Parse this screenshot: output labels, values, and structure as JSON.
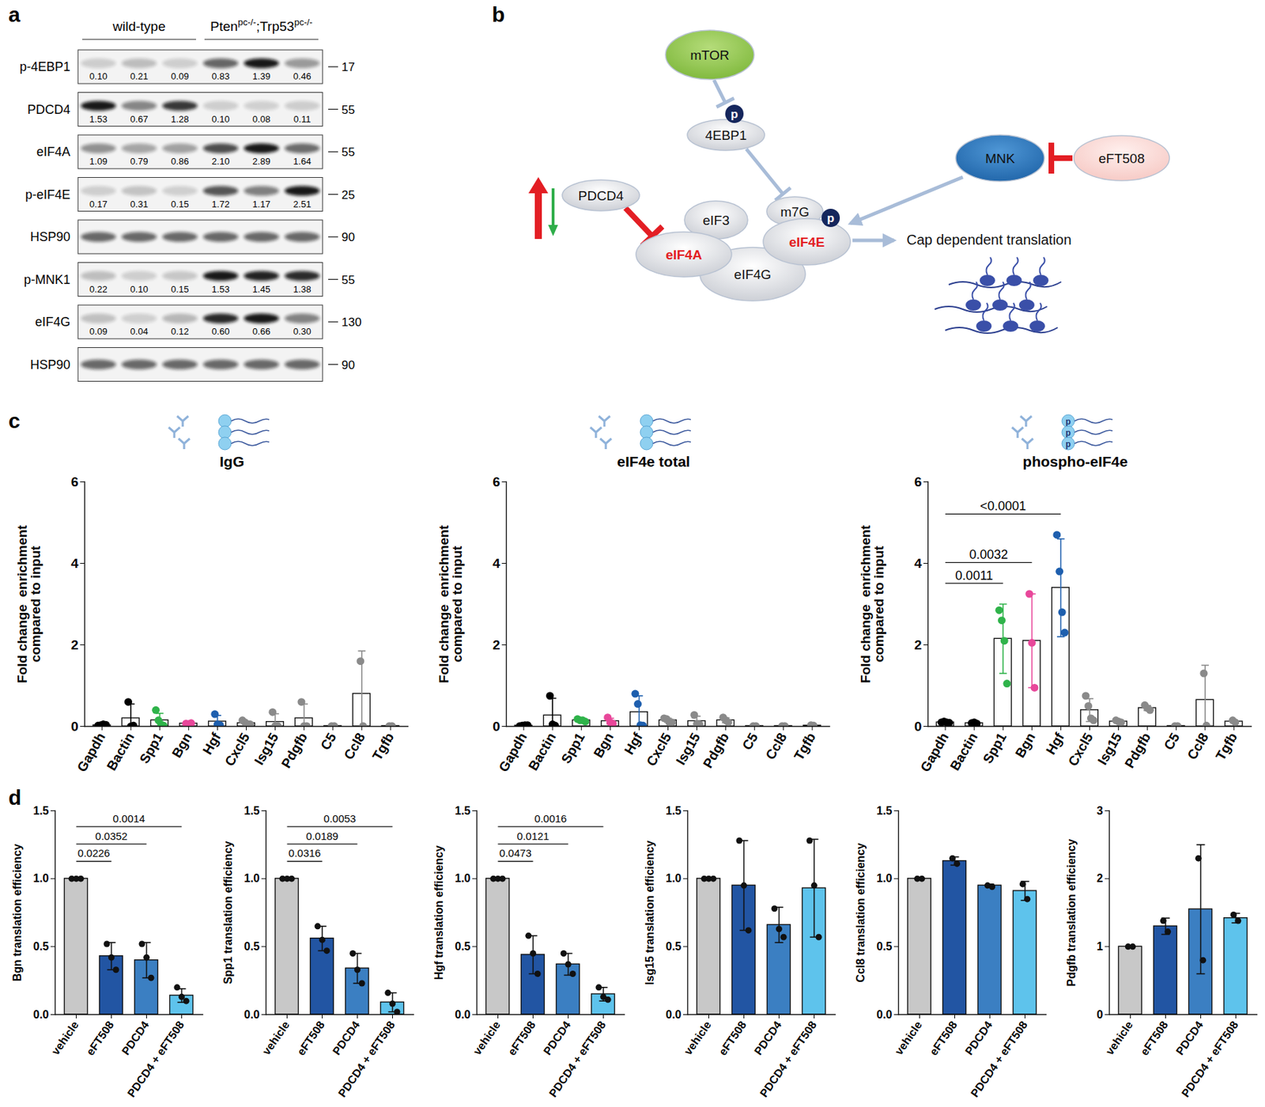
{
  "panel_labels": [
    "a",
    "b",
    "c",
    "d"
  ],
  "blot": {
    "groups": [
      {
        "label": [
          {
            "text": "wild-type"
          }
        ],
        "lanes": 3
      },
      {
        "label": [
          {
            "text": "Pten"
          },
          {
            "text": "pc-/-",
            "sup": true
          },
          {
            "text": ";Trp53"
          },
          {
            "text": "pc-/-",
            "sup": true
          }
        ],
        "lanes": 3
      }
    ],
    "rows": [
      {
        "name": "p-4EBP1",
        "mw": 17,
        "values": [
          0.1,
          0.21,
          0.09,
          0.83,
          1.39,
          0.46
        ],
        "value_labels": [
          "0.10",
          "0.21",
          "0.09",
          "0.83",
          "1.39",
          "0.46"
        ]
      },
      {
        "name": "PDCD4",
        "mw": 55,
        "values": [
          1.53,
          0.67,
          1.28,
          0.1,
          0.08,
          0.11
        ],
        "value_labels": [
          "1.53",
          "0.67",
          "1.28",
          "0.10",
          "0.08",
          "0.11"
        ]
      },
      {
        "name": "eIF4A",
        "mw": 55,
        "values": [
          1.09,
          0.79,
          0.86,
          2.1,
          2.89,
          1.64
        ],
        "value_labels": [
          "1.09",
          "0.79",
          "0.86",
          "2.10",
          "2.89",
          "1.64"
        ]
      },
      {
        "name": "p-eIF4E",
        "mw": 25,
        "values": [
          0.17,
          0.31,
          0.15,
          1.72,
          1.17,
          2.51
        ],
        "value_labels": [
          "0.17",
          "0.31",
          "0.15",
          "1.72",
          "1.17",
          "2.51"
        ]
      },
      {
        "name": "HSP90",
        "mw": 90
      },
      {
        "name": "p-MNK1",
        "mw": 55,
        "values": [
          0.22,
          0.1,
          0.15,
          1.53,
          1.45,
          1.38
        ],
        "value_labels": [
          "0.22",
          "0.10",
          "0.15",
          "1.53",
          "1.45",
          "1.38"
        ]
      },
      {
        "name": "eIF4G",
        "mw": 130,
        "values": [
          0.09,
          0.04,
          0.12,
          0.6,
          0.66,
          0.3
        ],
        "value_labels": [
          "0.09",
          "0.04",
          "0.12",
          "0.60",
          "0.66",
          "0.30"
        ]
      },
      {
        "name": "HSP90",
        "mw": 90
      }
    ]
  },
  "diagram": {
    "nodes": [
      {
        "label": "mTOR"
      },
      {
        "label": "4EBP1"
      },
      {
        "label": "MNK"
      },
      {
        "label": "eFT508"
      },
      {
        "label": "PDCD4"
      },
      {
        "label": "eIF3"
      },
      {
        "label": "eIF4G"
      },
      {
        "label": "eIF4A",
        "color": "#e31e24"
      },
      {
        "label": "m7G"
      },
      {
        "label": "eIF4E",
        "color": "#e31e24"
      }
    ],
    "phospho_label": "p",
    "output_label": "Cap dependent translation"
  },
  "chart_data": [
    {
      "type": "bar",
      "title": "IgG",
      "ylabel": "Fold change  enrichment\ncompared to input",
      "categories": [
        "Gapdh",
        "Bactin",
        "Spp1",
        "Bgn",
        "Hgf",
        "Cxcl5",
        "Isg15",
        "Pdgfb",
        "C5",
        "Ccl8",
        "Tgfb"
      ],
      "colors": [
        "#000000",
        "#000000",
        "#2fb34a",
        "#e8479a",
        "#1e5fae",
        "#8a8a8a",
        "#8a8a8a",
        "#8a8a8a",
        "#8a8a8a",
        "#8a8a8a",
        "#8a8a8a"
      ],
      "values": [
        0.03,
        0.2,
        0.15,
        0.07,
        0.12,
        0.08,
        0.11,
        0.2,
        0.01,
        0.8,
        0.01
      ],
      "errors": [
        0.02,
        0.35,
        0.17,
        0.01,
        0.15,
        0.05,
        0.2,
        0.35,
        0.0,
        1.05,
        0.0
      ],
      "points": [
        [
          0.02,
          0.03,
          0.05,
          0.04
        ],
        [
          0.6,
          0.0,
          0.02
        ],
        [
          0.4,
          0.15,
          0.05,
          0.02
        ],
        [
          0.07,
          0.06,
          0.08
        ],
        [
          0.3,
          0.05,
          0.03
        ],
        [
          0.15,
          0.1,
          0.05,
          0.05
        ],
        [
          0.35,
          0.01,
          0.01
        ],
        [
          0.6,
          0.01,
          0.01
        ],
        [
          0.01,
          0.01
        ],
        [
          1.6,
          0.01
        ],
        [
          0.01,
          0.01
        ]
      ],
      "ylim": [
        0,
        6
      ],
      "yticks": [
        0,
        2,
        4,
        6
      ]
    },
    {
      "type": "bar",
      "title": "eIF4e total",
      "ylabel": "Fold change  enrichment\ncompared to input",
      "categories": [
        "Gapdh",
        "Bactin",
        "Spp1",
        "Bgn",
        "Hgf",
        "Cxcl5",
        "Isg15",
        "Pdgfb",
        "C5",
        "Ccl8",
        "Tgfb"
      ],
      "colors": [
        "#000000",
        "#000000",
        "#2fb34a",
        "#e8479a",
        "#1e5fae",
        "#8a8a8a",
        "#8a8a8a",
        "#8a8a8a",
        "#8a8a8a",
        "#8a8a8a",
        "#8a8a8a"
      ],
      "values": [
        0.02,
        0.27,
        0.15,
        0.13,
        0.35,
        0.15,
        0.13,
        0.15,
        0.01,
        0.01,
        0.02
      ],
      "errors": [
        0.01,
        0.42,
        0.03,
        0.07,
        0.4,
        0.05,
        0.12,
        0.06,
        0.0,
        0.0,
        0.01
      ],
      "points": [
        [
          0.01,
          0.02,
          0.03,
          0.03
        ],
        [
          0.75,
          0.05,
          0.02
        ],
        [
          0.18,
          0.15,
          0.15,
          0.12
        ],
        [
          0.22,
          0.1,
          0.07
        ],
        [
          0.8,
          0.55,
          0.03,
          0.02
        ],
        [
          0.2,
          0.18,
          0.1,
          0.1
        ],
        [
          0.28,
          0.06,
          0.05
        ],
        [
          0.22,
          0.15,
          0.1
        ],
        [
          0.01,
          0.01
        ],
        [
          0.01,
          0.01
        ],
        [
          0.03,
          0.02
        ]
      ],
      "ylim": [
        0,
        6
      ],
      "yticks": [
        0,
        2,
        4,
        6
      ]
    },
    {
      "type": "bar",
      "title": "phospho-eIF4e",
      "ylabel": "Fold change  enrichment\ncompared to input",
      "categories": [
        "Gapdh",
        "Bactin",
        "Spp1",
        "Bgn",
        "Hgf",
        "Cxcl5",
        "Isg15",
        "Pdgfb",
        "C5",
        "Ccl8",
        "Tgfb"
      ],
      "colors": [
        "#000000",
        "#000000",
        "#2fb34a",
        "#e8479a",
        "#1e5fae",
        "#8a8a8a",
        "#8a8a8a",
        "#8a8a8a",
        "#8a8a8a",
        "#8a8a8a",
        "#8a8a8a"
      ],
      "values": [
        0.1,
        0.08,
        2.15,
        2.1,
        3.4,
        0.4,
        0.12,
        0.45,
        0.01,
        0.65,
        0.12
      ],
      "errors": [
        0.02,
        0.02,
        0.85,
        1.15,
        1.2,
        0.28,
        0.03,
        0.06,
        0.0,
        0.85,
        0.03
      ],
      "points": [
        [
          0.1,
          0.12,
          0.1,
          0.09
        ],
        [
          0.08,
          0.1,
          0.07
        ],
        [
          2.85,
          2.6,
          2.1,
          1.05
        ],
        [
          3.25,
          2.05,
          0.95
        ],
        [
          4.7,
          3.8,
          2.8,
          2.3
        ],
        [
          0.75,
          0.5,
          0.2,
          0.15
        ],
        [
          0.15,
          0.12,
          0.1
        ],
        [
          0.52,
          0.45,
          0.4
        ],
        [
          0.01,
          0.01
        ],
        [
          1.3,
          0.02
        ],
        [
          0.15,
          0.1
        ]
      ],
      "ylim": [
        0,
        6
      ],
      "yticks": [
        0,
        2,
        4,
        6
      ],
      "comparisons": [
        {
          "from": "Gapdh",
          "to": "Spp1",
          "label": "0.0011"
        },
        {
          "from": "Gapdh",
          "to": "Bgn",
          "label": "0.0032"
        },
        {
          "from": "Gapdh",
          "to": "Hgf",
          "label": "<0.0001"
        }
      ]
    },
    {
      "type": "bar",
      "ylabel": "Bgn translation efficiency",
      "categories": [
        "vehicle",
        "eFT508",
        "PDCD4",
        "PDCD4 + eFT508"
      ],
      "colors": [
        "#c8c8c8",
        "#2255a3",
        "#3b7fc2",
        "#5ec3ec"
      ],
      "values": [
        1.0,
        0.43,
        0.4,
        0.14
      ],
      "errors": [
        0.0,
        0.1,
        0.13,
        0.05
      ],
      "points": [
        [
          1.0,
          1.0,
          1.0
        ],
        [
          0.52,
          0.42,
          0.33
        ],
        [
          0.52,
          0.42,
          0.27
        ],
        [
          0.2,
          0.13,
          0.1
        ]
      ],
      "ylim": [
        0,
        1.5
      ],
      "yticks": [
        {
          "value": 0,
          "label": "0.0"
        },
        0.5,
        {
          "value": 1,
          "label": "1.0"
        },
        1.5
      ],
      "comparisons": [
        {
          "from": "vehicle",
          "to": "eFT508",
          "label": "0.0226"
        },
        {
          "from": "vehicle",
          "to": "PDCD4",
          "label": "0.0352"
        },
        {
          "from": "vehicle",
          "to": "PDCD4 + eFT508",
          "label": "0.0014"
        }
      ]
    },
    {
      "type": "bar",
      "ylabel": "Spp1 translation efficiency",
      "categories": [
        "vehicle",
        "eFT508",
        "PDCD4",
        "PDCD4 + eFT508"
      ],
      "colors": [
        "#c8c8c8",
        "#2255a3",
        "#3b7fc2",
        "#5ec3ec"
      ],
      "values": [
        1.0,
        0.56,
        0.34,
        0.09
      ],
      "errors": [
        0.0,
        0.09,
        0.11,
        0.07
      ],
      "points": [
        [
          1.0,
          1.0,
          1.0
        ],
        [
          0.65,
          0.55,
          0.47
        ],
        [
          0.45,
          0.33,
          0.23
        ],
        [
          0.16,
          0.08,
          0.02
        ]
      ],
      "ylim": [
        0,
        1.5
      ],
      "yticks": [
        {
          "value": 0,
          "label": "0.0"
        },
        0.5,
        {
          "value": 1,
          "label": "1.0"
        },
        1.5
      ],
      "comparisons": [
        {
          "from": "vehicle",
          "to": "eFT508",
          "label": "0.0316"
        },
        {
          "from": "vehicle",
          "to": "PDCD4",
          "label": "0.0189"
        },
        {
          "from": "vehicle",
          "to": "PDCD4 + eFT508",
          "label": "0.0053"
        }
      ]
    },
    {
      "type": "bar",
      "ylabel": "Hgf translation efficiency",
      "categories": [
        "vehicle",
        "eFT508",
        "PDCD4",
        "PDCD4 + eFT508"
      ],
      "colors": [
        "#c8c8c8",
        "#2255a3",
        "#3b7fc2",
        "#5ec3ec"
      ],
      "values": [
        1.0,
        0.44,
        0.37,
        0.15
      ],
      "errors": [
        0.0,
        0.14,
        0.08,
        0.05
      ],
      "points": [
        [
          1.0,
          1.0,
          1.0
        ],
        [
          0.58,
          0.45,
          0.3
        ],
        [
          0.45,
          0.37,
          0.3
        ],
        [
          0.2,
          0.13,
          0.11
        ]
      ],
      "ylim": [
        0,
        1.5
      ],
      "yticks": [
        {
          "value": 0,
          "label": "0.0"
        },
        0.5,
        {
          "value": 1,
          "label": "1.0"
        },
        1.5
      ],
      "comparisons": [
        {
          "from": "vehicle",
          "to": "eFT508",
          "label": "0.0473"
        },
        {
          "from": "vehicle",
          "to": "PDCD4",
          "label": "0.0121"
        },
        {
          "from": "vehicle",
          "to": "PDCD4 + eFT508",
          "label": "0.0016"
        }
      ]
    },
    {
      "type": "bar",
      "ylabel": "Isg15 translation efficiency",
      "categories": [
        "vehicle",
        "eFT508",
        "PDCD4",
        "PDCD4 + eFT508"
      ],
      "colors": [
        "#c8c8c8",
        "#2255a3",
        "#3b7fc2",
        "#5ec3ec"
      ],
      "values": [
        1.0,
        0.95,
        0.66,
        0.93
      ],
      "errors": [
        0.0,
        0.33,
        0.13,
        0.36
      ],
      "points": [
        [
          1.0,
          1.0,
          1.0
        ],
        [
          1.28,
          0.95,
          0.62
        ],
        [
          0.78,
          0.63,
          0.57
        ],
        [
          1.28,
          0.95,
          0.57
        ]
      ],
      "ylim": [
        0,
        1.5
      ],
      "yticks": [
        {
          "value": 0,
          "label": "0.0"
        },
        0.5,
        {
          "value": 1,
          "label": "1.0"
        },
        1.5
      ]
    },
    {
      "type": "bar",
      "ylabel": "Ccl8 translation efficiency",
      "categories": [
        "vehicle",
        "eFT508",
        "PDCD4",
        "PDCD4 + eFT508"
      ],
      "colors": [
        "#c8c8c8",
        "#2255a3",
        "#3b7fc2",
        "#5ec3ec"
      ],
      "values": [
        1.0,
        1.13,
        0.95,
        0.91
      ],
      "errors": [
        0.0,
        0.03,
        0.01,
        0.07
      ],
      "points": [
        [
          1.0,
          1.0
        ],
        [
          1.15,
          1.11
        ],
        [
          0.95,
          0.94
        ],
        [
          0.96,
          0.85
        ]
      ],
      "ylim": [
        0,
        1.5
      ],
      "yticks": [
        {
          "value": 0,
          "label": "0.0"
        },
        0.5,
        {
          "value": 1,
          "label": "1.0"
        },
        1.5
      ]
    },
    {
      "type": "bar",
      "ylabel": "Pdgfb translation efficiency",
      "categories": [
        "vehicle",
        "eFT508",
        "PDCD4",
        "PDCD4 + eFT508"
      ],
      "colors": [
        "#c8c8c8",
        "#2255a3",
        "#3b7fc2",
        "#5ec3ec"
      ],
      "values": [
        1.0,
        1.3,
        1.55,
        1.42
      ],
      "errors": [
        0.0,
        0.12,
        0.95,
        0.07
      ],
      "points": [
        [
          1.0,
          1.0
        ],
        [
          1.38,
          1.22
        ],
        [
          2.3,
          0.8
        ],
        [
          1.47,
          1.38
        ]
      ],
      "ylim": [
        0,
        3
      ],
      "yticks": [
        0,
        1,
        2,
        3
      ]
    }
  ]
}
